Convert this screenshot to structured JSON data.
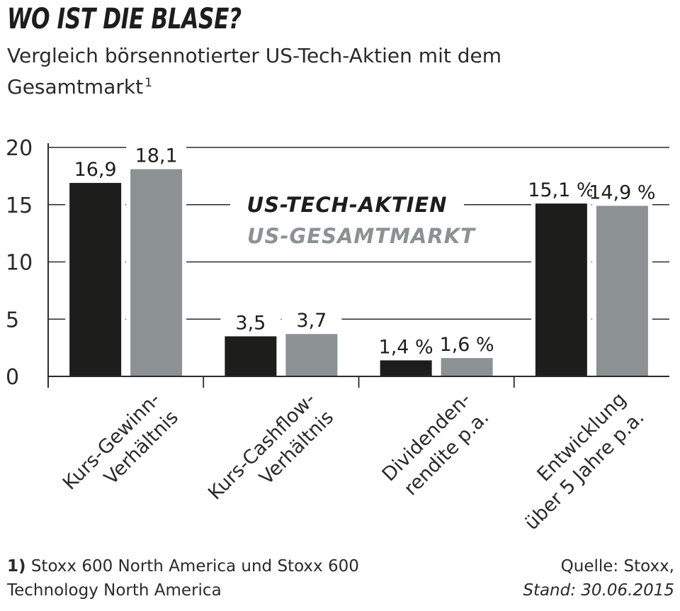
{
  "header": {
    "title": "WO IST DIE BLASE?",
    "subtitle": "Vergleich börsennotierter US-Tech-Aktien mit dem Gesamtmarkt",
    "subtitle_footnote_mark": "1"
  },
  "footer": {
    "footnote_mark": "1)",
    "footnote_text": "Stoxx 600 North America und Stoxx 600 Technology North America",
    "source": "Quelle: Stoxx,",
    "stand_label": "Stand:",
    "stand_date": "30.06.2015"
  },
  "colors": {
    "tech": "#1d1d1b",
    "market": "#8c9194",
    "grid": "#2a2a28",
    "text": "#1d1d1b"
  },
  "chart_data": {
    "type": "bar",
    "title": "WO IST DIE BLASE?",
    "categories": [
      [
        "Kurs-Gewinn-",
        "Verhältnis"
      ],
      [
        "Kurs-Cashflow-",
        "Verhältnis"
      ],
      [
        "Dividenden-",
        "rendite p.a."
      ],
      [
        "Entwicklung",
        "über 5 Jahre p.a."
      ]
    ],
    "series": [
      {
        "name": "US-TECH-AKTIEN",
        "color": "#1d1d1b",
        "values": [
          16.9,
          3.5,
          1.4,
          15.1
        ],
        "labels": [
          "16,9",
          "3,5",
          "1,4 %",
          "15,1 %"
        ]
      },
      {
        "name": "US-GESAMTMARKT",
        "color": "#8c9194",
        "values": [
          18.1,
          3.7,
          1.6,
          14.9
        ],
        "labels": [
          "18,1",
          "3,7",
          "1,6 %",
          "14,9 %"
        ]
      }
    ],
    "yticks": [
      "0",
      "5",
      "10",
      "15",
      "20"
    ],
    "ylim": [
      0,
      20
    ],
    "grid": true,
    "legend": "center, inside plot",
    "xlabel": "",
    "ylabel": ""
  }
}
